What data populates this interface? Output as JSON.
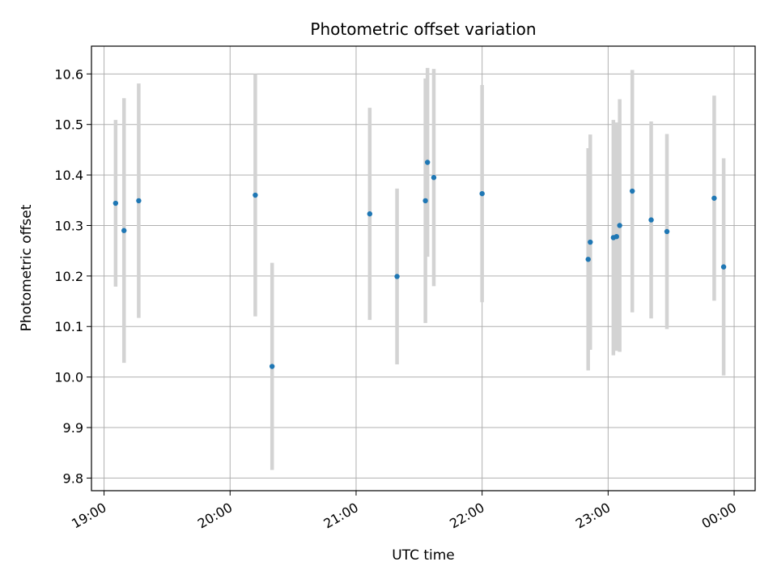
{
  "chart_data": {
    "type": "scatter",
    "title": "Photometric offset variation",
    "xlabel": "UTC time",
    "ylabel": "Photometric offset",
    "x_range": [
      "18:54",
      "00:10"
    ],
    "ylim": [
      9.775,
      10.655
    ],
    "y_ticks": [
      "9.8",
      "9.9",
      "10.0",
      "10.1",
      "10.2",
      "10.3",
      "10.4",
      "10.5",
      "10.6"
    ],
    "x_ticks": [
      "19:00",
      "20:00",
      "21:00",
      "22:00",
      "23:00",
      "00:00"
    ],
    "grid": true,
    "colors": {
      "point": "#1f77b4",
      "errorbar": "#d3d3d3",
      "grid": "#b0b0b0"
    },
    "points": [
      {
        "x": "19:05.5",
        "y": 10.344,
        "err": 0.165
      },
      {
        "x": "19:09.5",
        "y": 10.29,
        "err": 0.262
      },
      {
        "x": "19:16.5",
        "y": 10.349,
        "err": 0.232
      },
      {
        "x": "20:12",
        "y": 10.36,
        "err": 0.24
      },
      {
        "x": "20:20",
        "y": 10.021,
        "err": 0.205
      },
      {
        "x": "21:06.5",
        "y": 10.323,
        "err": 0.21
      },
      {
        "x": "21:19.5",
        "y": 10.199,
        "err": 0.174
      },
      {
        "x": "21:33",
        "y": 10.349,
        "err": 0.242
      },
      {
        "x": "21:34",
        "y": 10.425,
        "err": 0.187
      },
      {
        "x": "21:37",
        "y": 10.395,
        "err": 0.215
      },
      {
        "x": "22:00",
        "y": 10.363,
        "err": 0.215
      },
      {
        "x": "22:50.5",
        "y": 10.233,
        "err": 0.22
      },
      {
        "x": "22:51.5",
        "y": 10.267,
        "err": 0.213
      },
      {
        "x": "23:02.5",
        "y": 10.276,
        "err": 0.233
      },
      {
        "x": "23:04",
        "y": 10.278,
        "err": 0.226
      },
      {
        "x": "23:05.5",
        "y": 10.3,
        "err": 0.25
      },
      {
        "x": "23:11.5",
        "y": 10.368,
        "err": 0.24
      },
      {
        "x": "23:20.5",
        "y": 10.311,
        "err": 0.195
      },
      {
        "x": "23:28",
        "y": 10.288,
        "err": 0.193
      },
      {
        "x": "23:50.5",
        "y": 10.354,
        "err": 0.203
      },
      {
        "x": "23:55",
        "y": 10.218,
        "err": 0.215
      }
    ]
  }
}
